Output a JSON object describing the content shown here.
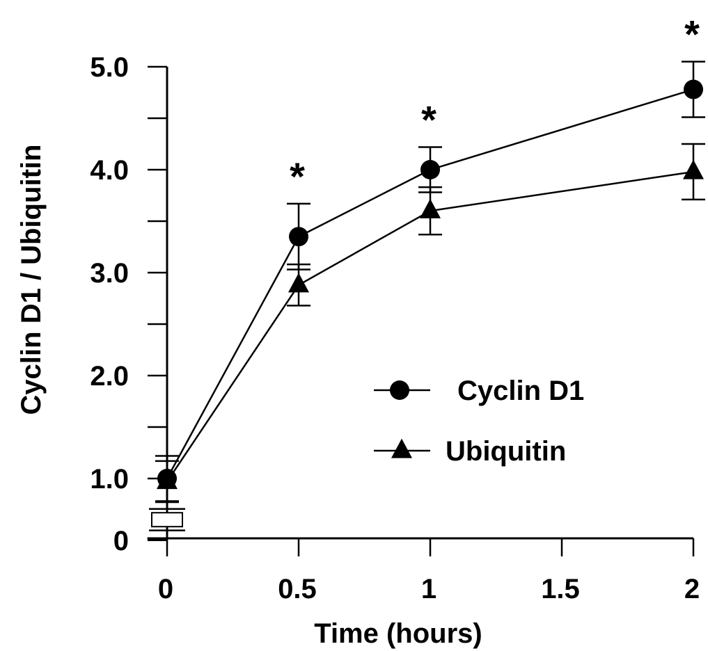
{
  "chart_data": {
    "type": "line",
    "xlabel": "Time (hours)",
    "ylabel": "Cyclin D1 / Ubiquitin",
    "x": [
      0,
      0.5,
      1,
      2
    ],
    "xlim": [
      -0.075,
      2
    ],
    "ylim": [
      0,
      5.0
    ],
    "x_ticks": [
      0,
      0.5,
      1,
      1.5,
      2
    ],
    "x_tick_labels": [
      "0",
      "0.5",
      "1",
      "1.5",
      "2"
    ],
    "y_ticks": [
      0.4,
      1.0,
      2.0,
      3.0,
      4.0,
      5.0
    ],
    "y_tick_labels": [
      "0",
      "1.0",
      "2.0",
      "3.0",
      "4.0",
      "5.0"
    ],
    "y_minor_ticks": [
      1.5,
      2.5,
      3.5,
      4.5
    ],
    "grid": false,
    "legend_position": "center-right",
    "series": [
      {
        "name": "Cyclin D1",
        "marker": "circle",
        "values": [
          1.0,
          3.35,
          4.0,
          4.78
        ],
        "error": [
          0.22,
          0.32,
          0.22,
          0.27
        ]
      },
      {
        "name": "Ubiquitin",
        "marker": "triangle",
        "values": [
          0.97,
          2.88,
          3.6,
          3.98
        ],
        "error": [
          0.2,
          0.2,
          0.23,
          0.27
        ]
      }
    ],
    "significance_markers": [
      {
        "x": 0.5,
        "label": "*"
      },
      {
        "x": 1,
        "label": "*"
      },
      {
        "x": 2,
        "label": "*"
      }
    ],
    "baseline_box": {
      "x": 0,
      "value": 0.6,
      "error": 0.05
    }
  }
}
